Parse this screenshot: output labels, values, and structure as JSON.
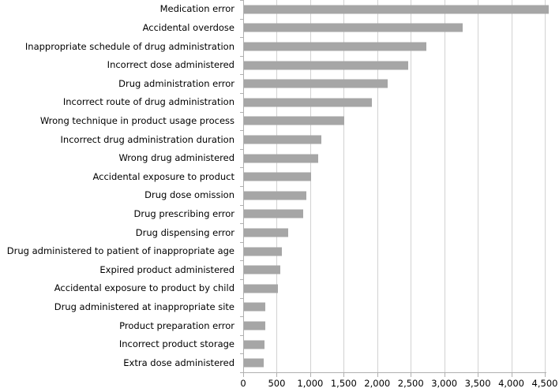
{
  "chart_data": {
    "type": "bar",
    "orientation": "horizontal",
    "title": "",
    "xlabel": "",
    "ylabel": "",
    "categories": [
      "Medication error",
      "Accidental overdose",
      "Inappropriate schedule of drug administration",
      "Incorrect dose administered",
      "Drug administration error",
      "Incorrect route of drug administration",
      "Wrong technique in product usage process",
      "Incorrect drug administration duration",
      "Wrong drug administered",
      "Accidental exposure to product",
      "Drug dose omission",
      "Drug prescribing error",
      "Drug dispensing error",
      "Drug administered to patient of inappropriate age",
      "Expired product administered",
      "Accidental exposure to product by child",
      "Drug administered at inappropriate site",
      "Product preparation error",
      "Incorrect product storage",
      "Extra dose administered"
    ],
    "values": [
      4350,
      3130,
      2610,
      2350,
      2060,
      1830,
      1440,
      1110,
      1070,
      970,
      900,
      850,
      640,
      550,
      530,
      500,
      310,
      310,
      305,
      290
    ],
    "xlim": [
      0,
      4500
    ],
    "xtick_interval": 500,
    "xtick_labels": [
      "0",
      "500",
      "1,000",
      "1,500",
      "2,000",
      "2,500",
      "3,000",
      "3,500",
      "4,000",
      "4,500"
    ],
    "grid": "vertical",
    "legend_position": "none",
    "bar_color": "#a6a6a6",
    "gridline_color": "#d2d2d2",
    "axis_color": "#b0b0b0",
    "text_color": "#000000"
  }
}
